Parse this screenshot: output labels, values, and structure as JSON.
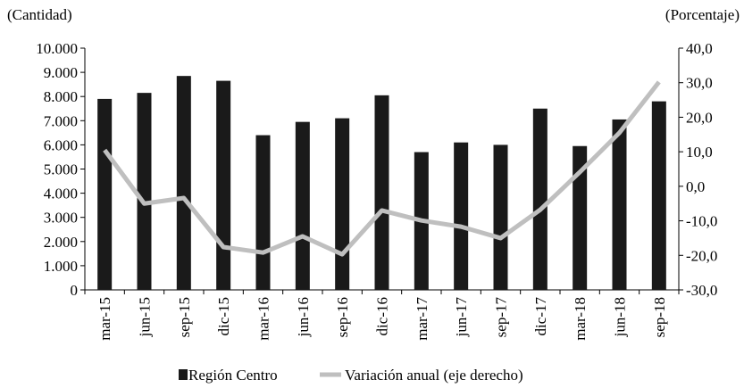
{
  "chart_data": {
    "type": "bar-line",
    "y_label": "(Cantidad)",
    "y2_label": "(Porcentaje)",
    "categories": [
      "mar-15",
      "jun-15",
      "sep-15",
      "dic-15",
      "mar-16",
      "jun-16",
      "sep-16",
      "dic-16",
      "mar-17",
      "jun-17",
      "sep-17",
      "dic-17",
      "mar-18",
      "jun-18",
      "sep-18"
    ],
    "series": [
      {
        "name": "Región Centro",
        "type": "bar",
        "color": "#1a1a1a",
        "values": [
          7900,
          8150,
          8850,
          8650,
          6400,
          6950,
          7100,
          8050,
          5700,
          6100,
          6000,
          7500,
          5950,
          7050,
          7800
        ]
      },
      {
        "name": "Variación anual (eje derecho)",
        "type": "line",
        "axis": "y2",
        "color": "#bfbfbf",
        "values": [
          10.5,
          -5.0,
          -3.4,
          -17.6,
          -19.2,
          -14.5,
          -19.7,
          -7.0,
          -9.9,
          -11.7,
          -15.0,
          -6.8,
          4.1,
          15.5,
          30.2
        ]
      }
    ],
    "ylim": [
      0,
      10000
    ],
    "yticks": [
      0,
      {
        "value": 1000,
        "label": "1.000"
      },
      {
        "value": 2000,
        "label": "2.000"
      },
      {
        "value": 3000,
        "label": "3.000"
      },
      {
        "value": 4000,
        "label": "4.000"
      },
      {
        "value": 5000,
        "label": "5.000"
      },
      {
        "value": 6000,
        "label": "6.000"
      },
      {
        "value": 7000,
        "label": "7.000"
      },
      {
        "value": 8000,
        "label": "8.000"
      },
      {
        "value": 9000,
        "label": "9.000"
      },
      {
        "value": 10000,
        "label": "10.000"
      }
    ],
    "y2lim": [
      -30,
      40
    ],
    "y2ticks": [
      {
        "value": -30,
        "label": "-30,0"
      },
      {
        "value": -20,
        "label": "-20,0"
      },
      {
        "value": -10,
        "label": "-10,0"
      },
      {
        "value": 0,
        "label": "0,0"
      },
      {
        "value": 10,
        "label": "10,0"
      },
      {
        "value": 20,
        "label": "20,0"
      },
      {
        "value": 30,
        "label": "30,0"
      },
      {
        "value": 40,
        "label": "40,0"
      }
    ],
    "grid": false
  }
}
